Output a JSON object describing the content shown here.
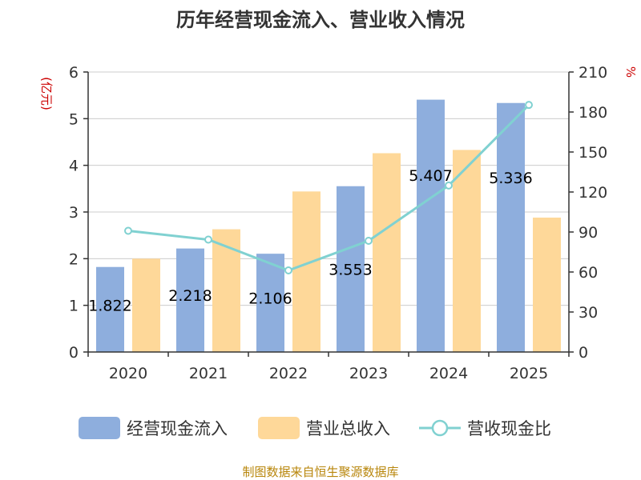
{
  "chart_data": {
    "type": "bar+line",
    "title": "历年经营现金流入、营业收入情况",
    "categories": [
      "2020",
      "2021",
      "2022",
      "2023",
      "2024",
      "2025"
    ],
    "left_axis": {
      "unit": "(亿元)",
      "ylim": [
        0,
        6
      ],
      "ticks": [
        "0",
        "1",
        "2",
        "3",
        "4",
        "5",
        "6"
      ]
    },
    "right_axis": {
      "unit": "%",
      "ylim": [
        0,
        210
      ],
      "ticks": [
        "0",
        "30",
        "60",
        "90",
        "120",
        "150",
        "180",
        "210"
      ]
    },
    "series": [
      {
        "name": "经营现金流入",
        "type": "bar",
        "axis": "left",
        "color": "#8eaedd",
        "values": [
          1.822,
          2.218,
          2.106,
          3.553,
          5.407,
          5.336
        ],
        "labels": [
          "1.822",
          "2.218",
          "2.106",
          "3.553",
          "5.407",
          "5.336"
        ]
      },
      {
        "name": "营业总收入",
        "type": "bar",
        "axis": "left",
        "color": "#fed899",
        "values": [
          2.0,
          2.63,
          3.44,
          4.26,
          4.33,
          2.88
        ]
      },
      {
        "name": "营收现金比",
        "type": "line",
        "axis": "right",
        "color": "#80d1d1",
        "values": [
          90.9,
          84.3,
          61.2,
          83.4,
          124.9,
          185.3
        ]
      }
    ],
    "source": "制图数据来自恒生聚源数据库"
  }
}
